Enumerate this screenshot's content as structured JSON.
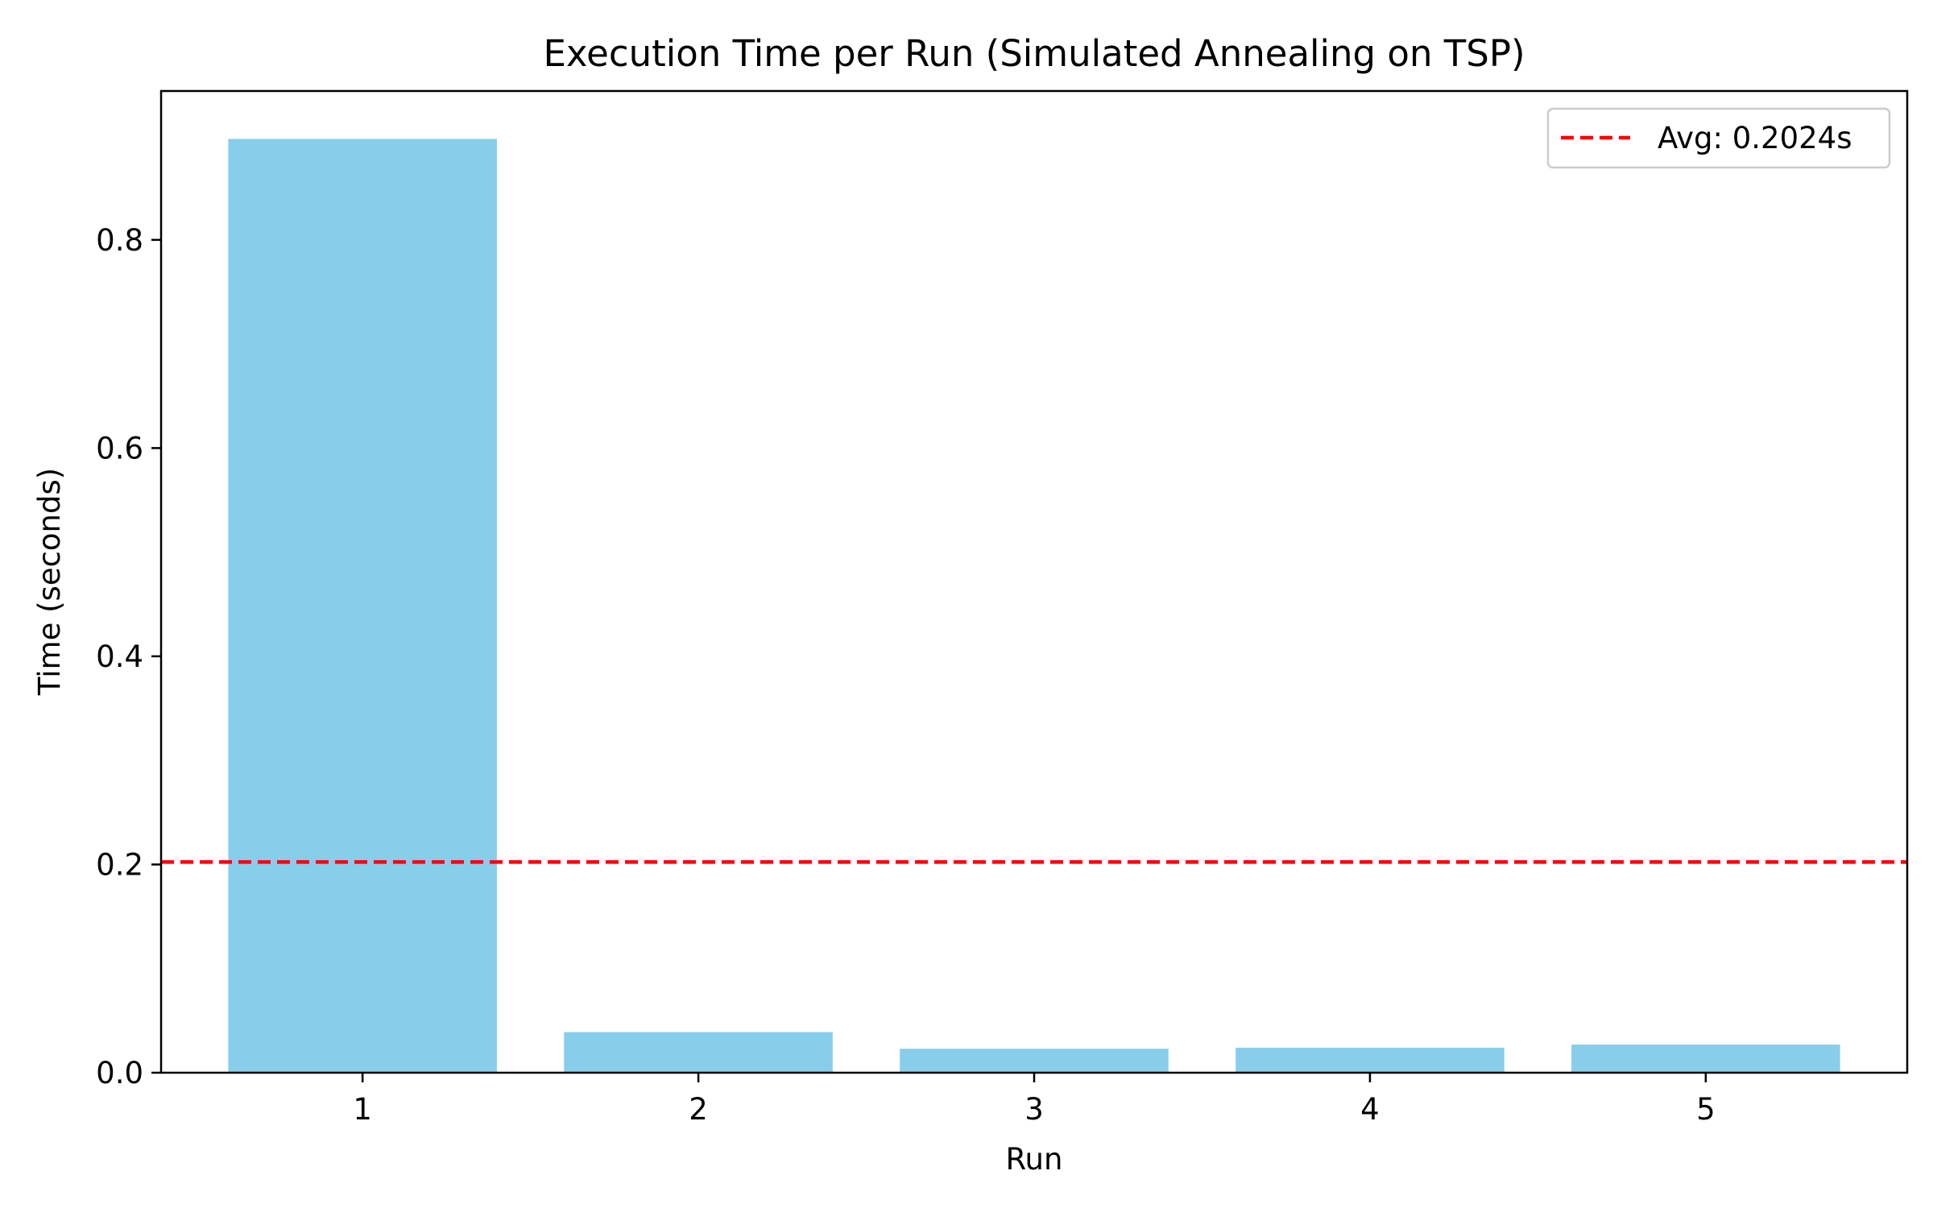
{
  "chart_data": {
    "type": "bar",
    "title": "Execution Time per Run (Simulated Annealing on TSP)",
    "xlabel": "Run",
    "ylabel": "Time (seconds)",
    "categories": [
      "1",
      "2",
      "3",
      "4",
      "5"
    ],
    "values": [
      0.897,
      0.039,
      0.023,
      0.024,
      0.027
    ],
    "ylim": [
      0,
      0.943
    ],
    "yticks": [
      0.0,
      0.2,
      0.4,
      0.6,
      0.8
    ],
    "ytick_labels": [
      "0.0",
      "0.2",
      "0.4",
      "0.6",
      "0.8"
    ],
    "bar_color": "#87ceeb",
    "reference_line": {
      "value": 0.2024,
      "color": "#ff0000",
      "style": "dashed",
      "label": "Avg: 0.2024s"
    },
    "legend": {
      "placement": "top-right",
      "entries": [
        "Avg: 0.2024s"
      ]
    },
    "grid": false
  }
}
